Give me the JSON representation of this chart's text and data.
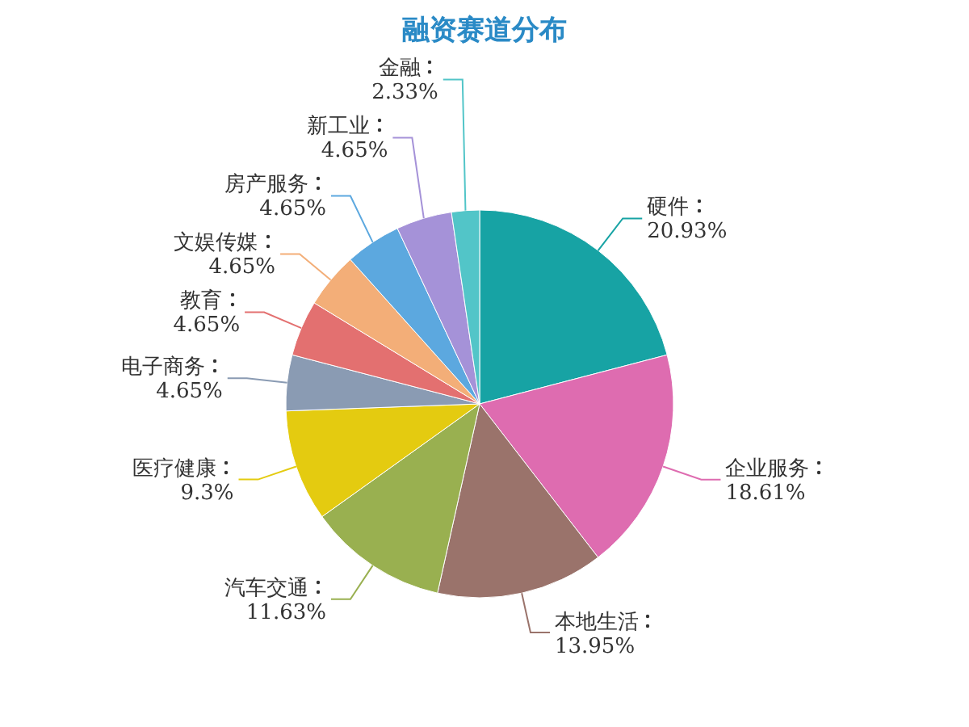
{
  "chart_data": {
    "type": "pie",
    "title": "融资赛道分布",
    "categories": [
      "硬件",
      "企业服务",
      "本地生活",
      "汽车交通",
      "医疗健康",
      "电子商务",
      "教育",
      "文娱传媒",
      "房产服务",
      "新工业",
      "金融"
    ],
    "values": [
      20.93,
      18.61,
      13.95,
      11.63,
      9.3,
      4.65,
      4.65,
      4.65,
      4.65,
      4.65,
      2.33
    ],
    "value_labels": [
      "20.93%",
      "18.61%",
      "13.95%",
      "11.63%",
      "9.3%",
      "4.65%",
      "4.65%",
      "4.65%",
      "4.65%",
      "4.65%",
      "2.33%"
    ],
    "colors": [
      "#17a3a4",
      "#de6cb0",
      "#9a736b",
      "#99b050",
      "#e4cb10",
      "#8a9bb3",
      "#e37070",
      "#f3ae78",
      "#5ca8df",
      "#a592d8",
      "#52c5c8"
    ]
  }
}
